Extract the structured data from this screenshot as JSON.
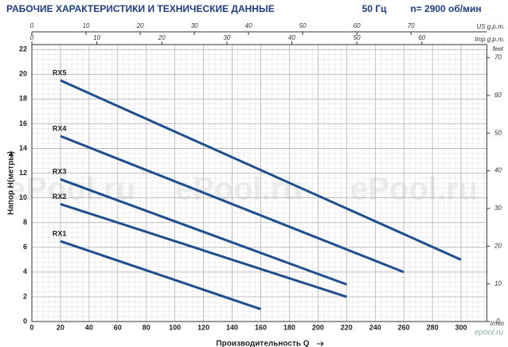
{
  "chart_data": {
    "type": "line",
    "title": "РАБОЧИЕ ХАРАКТЕРИСТИКИ И ТЕХНИЧЕСКИЕ ДАННЫЕ",
    "frequency": "50 Гц",
    "speed": "n= 2900 об/мин",
    "xlabel": "Производительность Q",
    "ylabel": "Напор H(метры)",
    "x_unit": "l/min",
    "y2_unit": "feet",
    "x2_unit": "US g.p.m.",
    "x3_unit": "Imp g.p.m.",
    "watermark": "ePool.ru",
    "logo": "epool.ru",
    "xlim": [
      0,
      318
    ],
    "xticks": [
      0,
      20,
      40,
      60,
      80,
      100,
      120,
      140,
      160,
      180,
      200,
      220,
      240,
      260,
      280,
      300
    ],
    "ylim": [
      0,
      22.4
    ],
    "yticks": [
      0,
      2,
      4,
      6,
      8,
      10,
      12,
      14,
      16,
      18,
      20,
      22
    ],
    "y2lim": [
      0,
      73.5
    ],
    "y2ticks": [
      0,
      10,
      20,
      30,
      40,
      50,
      60,
      70
    ],
    "x2lim": [
      0,
      84
    ],
    "x2ticks": [
      0,
      10,
      20,
      30,
      40,
      50,
      60,
      70
    ],
    "x3lim": [
      0,
      70
    ],
    "x3ticks": [
      0,
      10,
      20,
      30,
      40,
      50,
      60
    ],
    "grid": true,
    "series": [
      {
        "name": "RX5",
        "color": "#1f4e8c",
        "x": [
          20,
          300
        ],
        "values": [
          19.5,
          5
        ]
      },
      {
        "name": "RX4",
        "color": "#1f4e8c",
        "x": [
          20,
          260
        ],
        "values": [
          15,
          4
        ]
      },
      {
        "name": "RX3",
        "color": "#1f4e8c",
        "x": [
          20,
          220
        ],
        "values": [
          11.5,
          3
        ]
      },
      {
        "name": "RX2",
        "color": "#1f4e8c",
        "x": [
          20,
          220
        ],
        "values": [
          9.5,
          2
        ]
      },
      {
        "name": "RX1",
        "color": "#1f4e8c",
        "x": [
          20,
          160
        ],
        "values": [
          6.5,
          1
        ]
      }
    ]
  }
}
